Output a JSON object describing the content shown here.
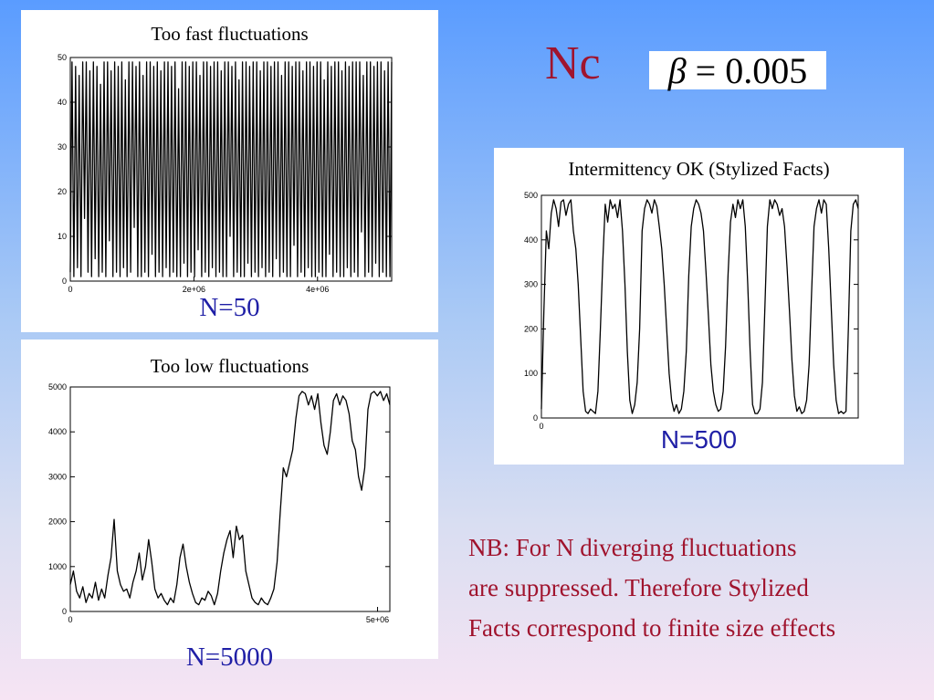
{
  "header": {
    "title": "Nc",
    "formula": {
      "symbol": "β",
      "relation": "=",
      "value": "0.005"
    }
  },
  "note": {
    "lines": [
      "NB: For N diverging fluctuations",
      "are suppressed. Therefore Stylized",
      "Facts correspond to finite size effects"
    ]
  },
  "chart_data": [
    {
      "id": "n50",
      "type": "line",
      "title": "Too fast fluctuations",
      "label": "N=50",
      "xlabel": "",
      "ylabel": "",
      "xlim": [
        0,
        5200000
      ],
      "ylim": [
        0,
        50
      ],
      "xticks": [
        0,
        2000000,
        4000000
      ],
      "xtick_labels": [
        "0",
        "2e+06",
        "4e+06"
      ],
      "yticks": [
        0,
        10,
        20,
        30,
        40,
        50
      ],
      "ytick_labels": [
        "0",
        "10",
        "20",
        "30",
        "40",
        "50"
      ],
      "grid": false,
      "series": [
        {
          "x_range": [
            0,
            5200000
          ],
          "values": [
            2,
            49,
            1,
            48,
            3,
            46,
            1,
            49,
            14,
            49,
            2,
            47,
            1,
            49,
            5,
            48,
            1,
            44,
            2,
            49,
            1,
            49,
            9,
            47,
            1,
            49,
            2,
            48,
            1,
            49,
            3,
            45,
            1,
            49,
            2,
            49,
            12,
            48,
            1,
            49,
            1,
            46,
            2,
            49,
            1,
            49,
            6,
            48,
            1,
            49,
            2,
            47,
            1,
            49,
            3,
            49,
            1,
            48,
            2,
            49,
            1,
            43,
            1,
            49,
            4,
            49,
            1,
            48,
            2,
            49,
            1,
            49,
            7,
            46,
            1,
            49,
            2,
            49,
            1,
            48,
            3,
            49,
            1,
            49,
            2,
            47,
            1,
            49,
            1,
            49,
            10,
            48,
            1,
            49,
            2,
            45,
            1,
            49,
            1,
            49,
            4,
            48,
            1,
            49,
            2,
            49,
            1,
            47,
            3,
            49,
            1,
            49,
            2,
            48,
            1,
            49,
            5,
            49,
            1,
            46,
            2,
            49,
            1,
            49,
            1,
            48,
            8,
            49,
            1,
            49,
            2,
            47,
            1,
            49,
            3,
            49,
            1,
            48,
            1,
            49,
            2,
            49,
            1,
            45,
            1,
            49,
            6,
            48,
            1,
            49,
            2,
            49,
            1,
            47,
            1,
            49,
            3,
            48,
            1,
            49,
            2,
            49,
            1,
            49,
            11,
            46,
            1,
            49,
            2,
            49,
            1,
            48,
            4,
            49,
            1,
            49,
            2,
            47,
            1,
            49,
            1,
            49
          ]
        }
      ]
    },
    {
      "id": "n500",
      "type": "line",
      "title": "Intermittency OK (Stylized Facts)",
      "label": "N=500",
      "xlabel": "",
      "ylabel": "",
      "xlim": [
        0,
        5200000
      ],
      "ylim": [
        0,
        500
      ],
      "xticks": [
        0
      ],
      "xtick_labels": [
        "0"
      ],
      "yticks": [
        0,
        100,
        200,
        300,
        400,
        500
      ],
      "ytick_labels": [
        "0",
        "100",
        "200",
        "300",
        "400",
        "500"
      ],
      "grid": false,
      "series": [
        {
          "x_range": [
            0,
            5200000
          ],
          "values": [
            20,
            240,
            420,
            380,
            460,
            490,
            470,
            430,
            485,
            490,
            455,
            480,
            490,
            420,
            380,
            300,
            180,
            60,
            15,
            10,
            20,
            15,
            10,
            60,
            200,
            350,
            480,
            440,
            490,
            470,
            480,
            450,
            490,
            420,
            300,
            150,
            40,
            10,
            30,
            80,
            200,
            420,
            470,
            490,
            480,
            460,
            490,
            475,
            430,
            380,
            300,
            200,
            100,
            40,
            15,
            30,
            10,
            20,
            60,
            150,
            320,
            430,
            470,
            490,
            480,
            460,
            420,
            330,
            230,
            120,
            60,
            30,
            15,
            20,
            60,
            160,
            320,
            440,
            480,
            450,
            490,
            470,
            490,
            430,
            300,
            150,
            30,
            10,
            10,
            20,
            80,
            250,
            430,
            490,
            470,
            490,
            480,
            455,
            470,
            430,
            340,
            240,
            130,
            50,
            15,
            25,
            10,
            15,
            40,
            120,
            280,
            430,
            470,
            490,
            460,
            490,
            480,
            380,
            250,
            120,
            40,
            10,
            15,
            10,
            15,
            200,
            420,
            480,
            490,
            470
          ]
        }
      ]
    },
    {
      "id": "n5000",
      "type": "line",
      "title": "Too low fluctuations",
      "label": "N=5000",
      "xlabel": "",
      "ylabel": "",
      "xlim": [
        0,
        5200000
      ],
      "ylim": [
        0,
        5000
      ],
      "xticks": [
        0,
        5000000
      ],
      "xtick_labels": [
        "0",
        "5e+06"
      ],
      "yticks": [
        0,
        1000,
        2000,
        3000,
        4000,
        5000
      ],
      "ytick_labels": [
        "0",
        "1000",
        "2000",
        "3000",
        "4000",
        "5000"
      ],
      "grid": false,
      "series": [
        {
          "x_range": [
            0,
            5200000
          ],
          "values": [
            600,
            900,
            450,
            300,
            550,
            200,
            400,
            300,
            650,
            250,
            500,
            300,
            800,
            1200,
            2050,
            900,
            600,
            450,
            500,
            300,
            650,
            900,
            1300,
            700,
            1000,
            1600,
            1100,
            500,
            300,
            400,
            250,
            150,
            300,
            200,
            600,
            1200,
            1500,
            1000,
            650,
            400,
            200,
            150,
            300,
            250,
            450,
            350,
            150,
            400,
            900,
            1300,
            1600,
            1800,
            1200,
            1900,
            1600,
            1700,
            900,
            600,
            300,
            200,
            150,
            300,
            200,
            150,
            300,
            500,
            1100,
            2200,
            3200,
            3000,
            3300,
            3600,
            4300,
            4800,
            4900,
            4850,
            4600,
            4800,
            4500,
            4850,
            4200,
            3700,
            3500,
            4000,
            4700,
            4850,
            4600,
            4800,
            4700,
            4400,
            3800,
            3600,
            3000,
            2700,
            3200,
            4500,
            4850,
            4900,
            4800,
            4900,
            4700,
            4850,
            4600
          ]
        }
      ]
    }
  ]
}
